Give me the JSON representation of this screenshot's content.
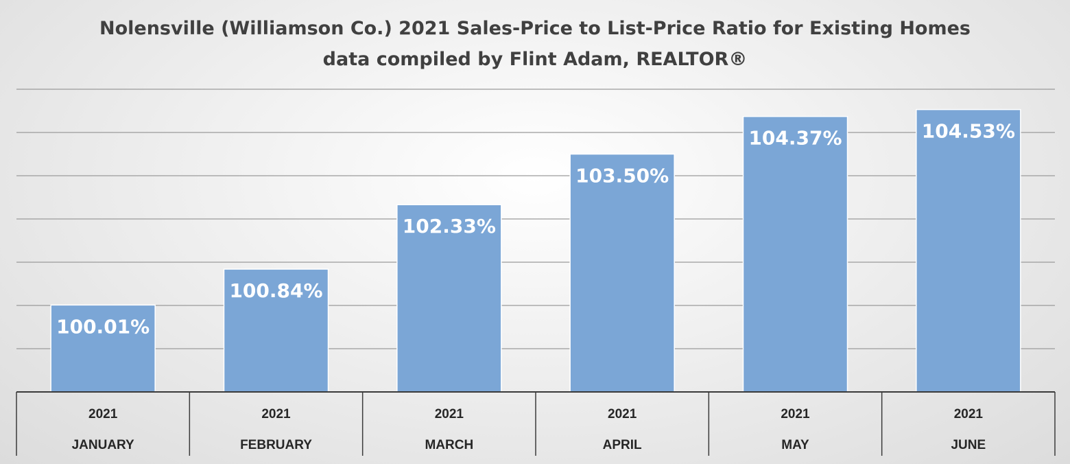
{
  "chart_data": {
    "type": "bar",
    "title": "Nolensville (Williamson Co.) 2021 Sales-Price to List-Price Ratio for Existing Homes",
    "subtitle": "data compiled by Flint Adam, REALTOR®",
    "xlabel": "",
    "ylabel": "",
    "categories": [
      {
        "year": "2021",
        "month": "JANUARY"
      },
      {
        "year": "2021",
        "month": "FEBRUARY"
      },
      {
        "year": "2021",
        "month": "MARCH"
      },
      {
        "year": "2021",
        "month": "APRIL"
      },
      {
        "year": "2021",
        "month": "MAY"
      },
      {
        "year": "2021",
        "month": "JUNE"
      }
    ],
    "values": [
      100.01,
      100.84,
      102.33,
      103.5,
      104.37,
      104.53
    ],
    "value_labels": [
      "100.01%",
      "100.84%",
      "102.33%",
      "103.50%",
      "104.37%",
      "104.53%"
    ],
    "ylim": [
      98,
      105
    ],
    "gridlines": [
      99,
      100,
      101,
      102,
      103,
      104,
      105
    ],
    "grid": true,
    "y_tick_labels_shown": false,
    "legend": "none",
    "colors": {
      "bar": "#7BA6D6",
      "bar_label": "#FFFFFF",
      "gridline": "#9A9A9A",
      "title": "#404040",
      "axis": "#3A3A3A"
    }
  }
}
